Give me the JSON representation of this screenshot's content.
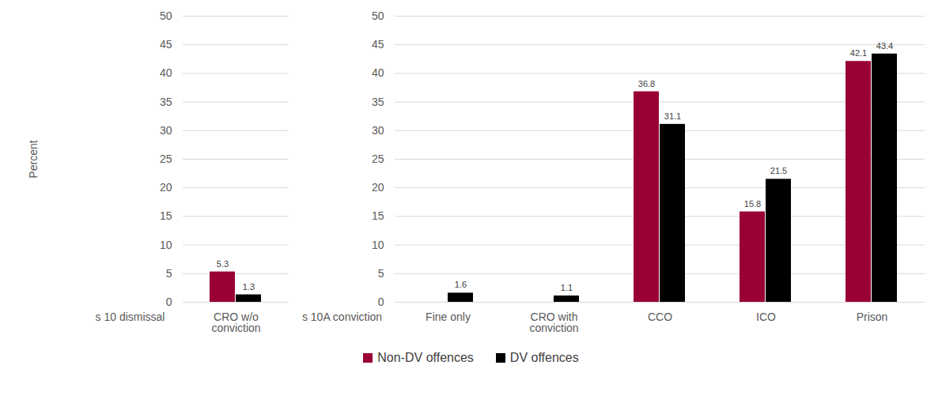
{
  "chart_data": {
    "type": "bar",
    "y_label": "Percent",
    "categories": [
      "s 10 dismissal",
      "CRO w/o conviction",
      "s 10A conviction",
      "Fine only",
      "CRO with conviction",
      "CCO",
      "ICO",
      "Prison"
    ],
    "series": [
      {
        "name": "Non-DV offences",
        "color": "#990033",
        "values": [
          null,
          5.3,
          null,
          null,
          null,
          36.8,
          15.8,
          42.1
        ]
      },
      {
        "name": "DV offences",
        "color": "#000000",
        "values": [
          null,
          1.3,
          null,
          1.6,
          1.1,
          31.1,
          21.5,
          43.4
        ]
      }
    ],
    "ylim": [
      0,
      50
    ],
    "yticks": [
      0,
      5,
      10,
      15,
      20,
      25,
      30,
      35,
      40,
      45,
      50
    ],
    "grid": true,
    "data_labels": true,
    "legend": "bottom"
  }
}
